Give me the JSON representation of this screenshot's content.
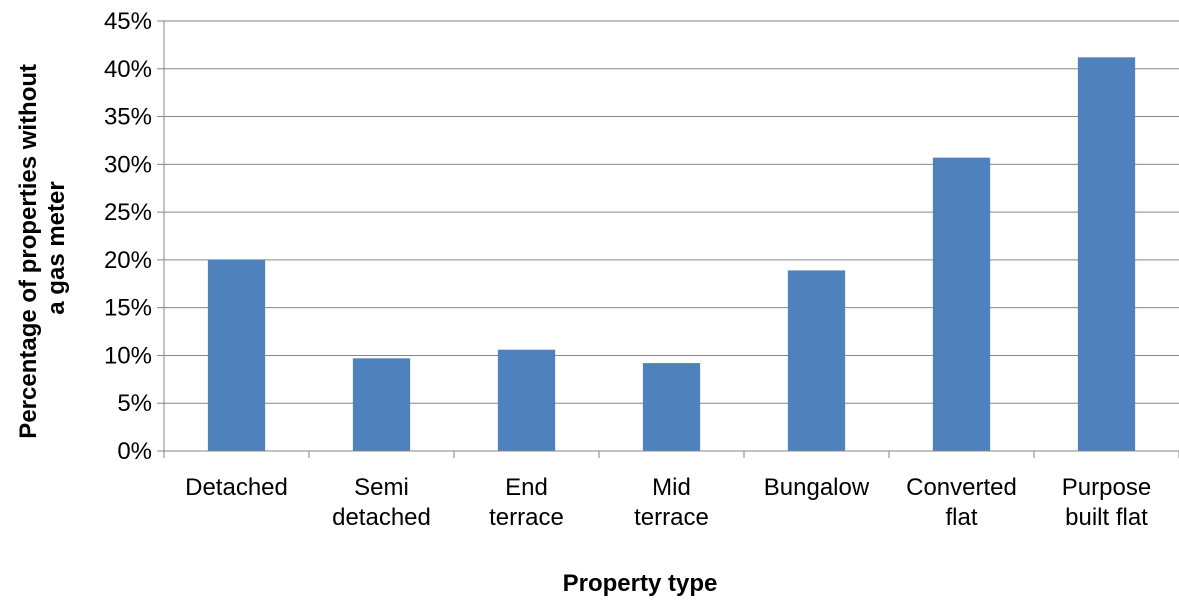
{
  "chart_data": {
    "type": "bar",
    "title": "",
    "xlabel": "Property type",
    "ylabel_lines": [
      "Percentage of properties without",
      "a gas meter"
    ],
    "categories": [
      [
        "Detached"
      ],
      [
        "Semi",
        "detached"
      ],
      [
        "End",
        "terrace"
      ],
      [
        "Mid",
        "terrace"
      ],
      [
        "Bungalow"
      ],
      [
        "Converted",
        "flat"
      ],
      [
        "Purpose",
        "built flat"
      ]
    ],
    "values": [
      20.0,
      9.7,
      10.6,
      9.2,
      18.9,
      30.7,
      41.2
    ],
    "ylim": [
      0,
      45
    ],
    "ytick_step": 5,
    "ytick_labels": [
      "0%",
      "5%",
      "10%",
      "15%",
      "20%",
      "25%",
      "30%",
      "35%",
      "40%",
      "45%"
    ],
    "grid": true,
    "legend": "none",
    "colors": {
      "bar": "#4F81BD",
      "grid": "#868686",
      "axis": "#868686"
    }
  }
}
